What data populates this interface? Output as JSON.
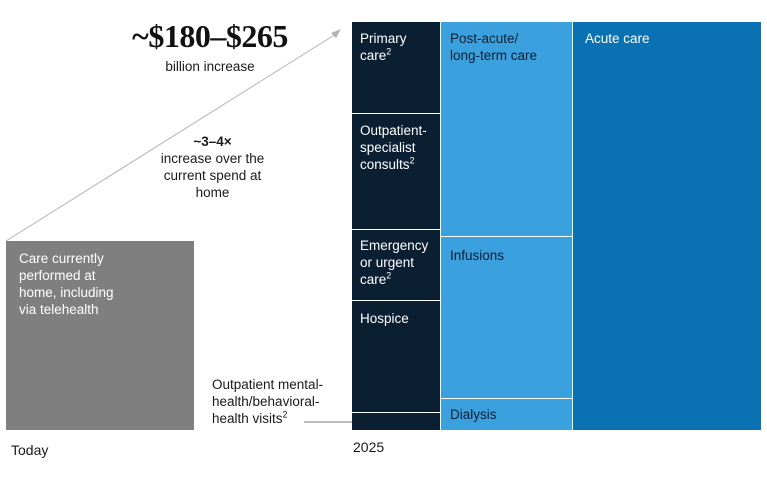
{
  "headline": {
    "value": "~$180–$265",
    "sub": "billion increase"
  },
  "multiplier": {
    "value": "~3–4×",
    "line1": "increase over the",
    "line2": "current spend at",
    "line3": "home"
  },
  "today": {
    "axis_label": "Today",
    "block_line1": "Care currently",
    "block_line2": "performed at",
    "block_line3": "home, including",
    "block_line4": "via telehealth"
  },
  "year_2025": {
    "axis_label": "2025"
  },
  "segments": {
    "primary_care": {
      "line1": "Primary",
      "line2": "care",
      "note": "2"
    },
    "outpatient_specialist": {
      "line1": "Outpatient-",
      "line2": "specialist",
      "line3": "consults",
      "note": "2"
    },
    "emergency": {
      "line1": "Emergency",
      "line2": "or urgent",
      "line3": "care",
      "note": "2"
    },
    "hospice": {
      "label": "Hospice"
    },
    "mental_health": {
      "line1": "Outpatient mental-",
      "line2": "health/behavioral-",
      "line3": "health visits",
      "note": "2"
    },
    "post_acute": {
      "line1": "Post-acute/",
      "line2": "long-term care"
    },
    "infusions": {
      "label": "Infusions"
    },
    "dialysis": {
      "label": "Dialysis"
    },
    "acute_care": {
      "label": "Acute care"
    }
  },
  "colors": {
    "today_block": "#7f7f7f",
    "navy": "#0b1f33",
    "light_blue": "#3aa0de",
    "mid_blue": "#0a71b3",
    "arrow": "#b3b3b3"
  },
  "chart_data": {
    "type": "treemap",
    "title": "",
    "categories": [
      "Today",
      "2025"
    ],
    "today": {
      "label": "Care currently performed at home, including via telehealth"
    },
    "increase_2025": {
      "range_billion_usd": [
        180,
        265
      ],
      "multiplier_range": [
        3,
        4
      ],
      "segments": [
        {
          "name": "Primary care",
          "group": "column-1"
        },
        {
          "name": "Outpatient-specialist consults",
          "group": "column-1"
        },
        {
          "name": "Emergency or urgent care",
          "group": "column-1"
        },
        {
          "name": "Hospice",
          "group": "column-1"
        },
        {
          "name": "Outpatient mental-health/behavioral-health visits",
          "group": "column-1"
        },
        {
          "name": "Post-acute/long-term care",
          "group": "column-2"
        },
        {
          "name": "Infusions",
          "group": "column-2"
        },
        {
          "name": "Dialysis",
          "group": "column-2"
        },
        {
          "name": "Acute care",
          "group": "column-3"
        }
      ]
    }
  }
}
